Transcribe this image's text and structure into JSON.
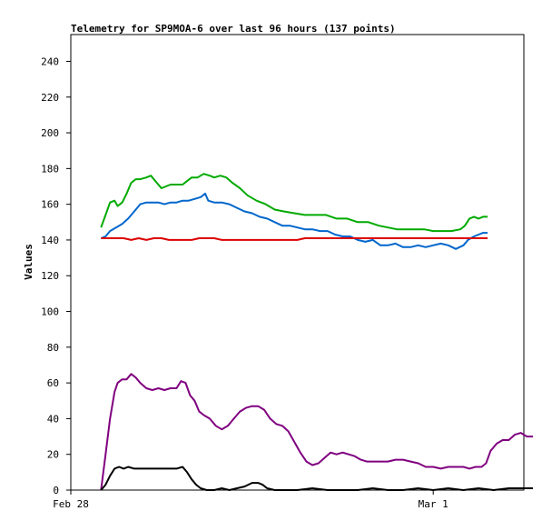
{
  "chart_data": {
    "type": "line",
    "title": "Telemetry for SP9MOA-6 over last 96 hours (137 points)",
    "ylabel": "Values",
    "xlabel": "",
    "ylim": [
      0,
      255
    ],
    "yticks": [
      0,
      20,
      40,
      60,
      80,
      100,
      120,
      140,
      160,
      180,
      200,
      220,
      240
    ],
    "x_ticks": [
      {
        "label": "Feb 28",
        "x": 0
      },
      {
        "label": "Mar 1",
        "x": 24
      }
    ],
    "xlim": [
      0,
      30
    ],
    "grid": false,
    "legend": "none",
    "series": [
      {
        "color": "#00aa00",
        "points": [
          [
            2.0,
            147
          ],
          [
            2.3,
            154
          ],
          [
            2.6,
            161
          ],
          [
            2.9,
            162
          ],
          [
            3.1,
            159
          ],
          [
            3.4,
            161
          ],
          [
            3.7,
            166
          ],
          [
            4.0,
            172
          ],
          [
            4.3,
            174
          ],
          [
            4.6,
            174
          ],
          [
            5.0,
            175
          ],
          [
            5.3,
            176
          ],
          [
            5.6,
            173
          ],
          [
            6.0,
            169
          ],
          [
            6.3,
            170
          ],
          [
            6.6,
            171
          ],
          [
            7.0,
            171
          ],
          [
            7.4,
            171
          ],
          [
            7.7,
            173
          ],
          [
            8.0,
            175
          ],
          [
            8.4,
            175
          ],
          [
            8.8,
            177
          ],
          [
            9.2,
            176
          ],
          [
            9.5,
            175
          ],
          [
            9.9,
            176
          ],
          [
            10.3,
            175
          ],
          [
            10.7,
            172
          ],
          [
            11.2,
            169
          ],
          [
            11.7,
            165
          ],
          [
            12.3,
            162
          ],
          [
            12.9,
            160
          ],
          [
            13.5,
            157
          ],
          [
            14.1,
            156
          ],
          [
            14.8,
            155
          ],
          [
            15.5,
            154
          ],
          [
            16.2,
            154
          ],
          [
            16.9,
            154
          ],
          [
            17.6,
            152
          ],
          [
            18.3,
            152
          ],
          [
            19.0,
            150
          ],
          [
            19.7,
            150
          ],
          [
            20.4,
            148
          ],
          [
            21.0,
            147
          ],
          [
            21.6,
            146
          ],
          [
            22.2,
            146
          ],
          [
            22.8,
            146
          ],
          [
            23.4,
            146
          ],
          [
            24.0,
            145
          ],
          [
            24.6,
            145
          ],
          [
            25.2,
            145
          ],
          [
            25.8,
            146
          ],
          [
            26.1,
            148
          ],
          [
            26.4,
            152
          ],
          [
            26.7,
            153
          ],
          [
            27.0,
            152
          ],
          [
            27.3,
            153
          ],
          [
            27.6,
            153
          ]
        ]
      },
      {
        "color": "#0066cc",
        "points": [
          [
            2.0,
            141
          ],
          [
            2.3,
            142
          ],
          [
            2.6,
            145
          ],
          [
            3.0,
            147
          ],
          [
            3.4,
            149
          ],
          [
            3.8,
            152
          ],
          [
            4.2,
            156
          ],
          [
            4.6,
            160
          ],
          [
            5.0,
            161
          ],
          [
            5.4,
            161
          ],
          [
            5.8,
            161
          ],
          [
            6.2,
            160
          ],
          [
            6.6,
            161
          ],
          [
            7.0,
            161
          ],
          [
            7.4,
            162
          ],
          [
            7.8,
            162
          ],
          [
            8.2,
            163
          ],
          [
            8.6,
            164
          ],
          [
            8.9,
            166
          ],
          [
            9.1,
            162
          ],
          [
            9.5,
            161
          ],
          [
            10.0,
            161
          ],
          [
            10.5,
            160
          ],
          [
            11.0,
            158
          ],
          [
            11.5,
            156
          ],
          [
            12.0,
            155
          ],
          [
            12.5,
            153
          ],
          [
            13.0,
            152
          ],
          [
            13.5,
            150
          ],
          [
            14.0,
            148
          ],
          [
            14.5,
            148
          ],
          [
            15.0,
            147
          ],
          [
            15.5,
            146
          ],
          [
            16.0,
            146
          ],
          [
            16.5,
            145
          ],
          [
            17.0,
            145
          ],
          [
            17.5,
            143
          ],
          [
            18.0,
            142
          ],
          [
            18.5,
            142
          ],
          [
            19.0,
            140
          ],
          [
            19.5,
            139
          ],
          [
            20.0,
            140
          ],
          [
            20.5,
            137
          ],
          [
            21.0,
            137
          ],
          [
            21.5,
            138
          ],
          [
            22.0,
            136
          ],
          [
            22.5,
            136
          ],
          [
            23.0,
            137
          ],
          [
            23.5,
            136
          ],
          [
            24.0,
            137
          ],
          [
            24.5,
            138
          ],
          [
            25.0,
            137
          ],
          [
            25.5,
            135
          ],
          [
            26.0,
            137
          ],
          [
            26.3,
            140
          ],
          [
            26.7,
            142
          ],
          [
            27.0,
            143
          ],
          [
            27.3,
            144
          ],
          [
            27.6,
            144
          ]
        ]
      },
      {
        "color": "#dd0000",
        "points": [
          [
            2.0,
            141
          ],
          [
            3.0,
            141
          ],
          [
            3.5,
            141
          ],
          [
            4.0,
            140
          ],
          [
            4.5,
            141
          ],
          [
            5.0,
            140
          ],
          [
            5.5,
            141
          ],
          [
            6.0,
            141
          ],
          [
            6.5,
            140
          ],
          [
            8.0,
            140
          ],
          [
            8.5,
            141
          ],
          [
            9.5,
            141
          ],
          [
            10.0,
            140
          ],
          [
            15.0,
            140
          ],
          [
            15.5,
            141
          ],
          [
            20.0,
            141
          ],
          [
            27.6,
            141
          ]
        ]
      },
      {
        "color": "#800080",
        "points": [
          [
            2.0,
            0
          ],
          [
            2.3,
            20
          ],
          [
            2.6,
            40
          ],
          [
            2.9,
            55
          ],
          [
            3.1,
            60
          ],
          [
            3.4,
            62
          ],
          [
            3.7,
            62
          ],
          [
            4.0,
            65
          ],
          [
            4.3,
            63
          ],
          [
            4.6,
            60
          ],
          [
            5.0,
            57
          ],
          [
            5.4,
            56
          ],
          [
            5.8,
            57
          ],
          [
            6.2,
            56
          ],
          [
            6.6,
            57
          ],
          [
            7.0,
            57
          ],
          [
            7.3,
            61
          ],
          [
            7.6,
            60
          ],
          [
            7.9,
            53
          ],
          [
            8.2,
            50
          ],
          [
            8.5,
            44
          ],
          [
            8.8,
            42
          ],
          [
            9.2,
            40
          ],
          [
            9.6,
            36
          ],
          [
            10.0,
            34
          ],
          [
            10.4,
            36
          ],
          [
            10.8,
            40
          ],
          [
            11.2,
            44
          ],
          [
            11.6,
            46
          ],
          [
            12.0,
            47
          ],
          [
            12.4,
            47
          ],
          [
            12.8,
            45
          ],
          [
            13.2,
            40
          ],
          [
            13.6,
            37
          ],
          [
            14.0,
            36
          ],
          [
            14.4,
            33
          ],
          [
            14.8,
            27
          ],
          [
            15.2,
            21
          ],
          [
            15.6,
            16
          ],
          [
            16.0,
            14
          ],
          [
            16.4,
            15
          ],
          [
            16.8,
            18
          ],
          [
            17.2,
            21
          ],
          [
            17.6,
            20
          ],
          [
            18.0,
            21
          ],
          [
            18.4,
            20
          ],
          [
            18.8,
            19
          ],
          [
            19.2,
            17
          ],
          [
            19.6,
            16
          ],
          [
            20.0,
            16
          ],
          [
            20.5,
            16
          ],
          [
            21.0,
            16
          ],
          [
            21.5,
            17
          ],
          [
            22.0,
            17
          ],
          [
            22.5,
            16
          ],
          [
            23.0,
            15
          ],
          [
            23.5,
            13
          ],
          [
            24.0,
            13
          ],
          [
            24.5,
            12
          ],
          [
            25.0,
            13
          ],
          [
            25.5,
            13
          ],
          [
            26.0,
            13
          ],
          [
            26.4,
            12
          ],
          [
            26.8,
            13
          ],
          [
            27.2,
            13
          ],
          [
            27.5,
            15
          ],
          [
            27.8,
            22
          ],
          [
            28.2,
            26
          ],
          [
            28.6,
            28
          ],
          [
            29.0,
            28
          ],
          [
            29.4,
            31
          ],
          [
            29.8,
            32
          ],
          [
            30.2,
            30
          ],
          [
            30.6,
            30
          ]
        ]
      },
      {
        "color": "#000000",
        "points": [
          [
            2.0,
            0
          ],
          [
            2.3,
            3
          ],
          [
            2.6,
            8
          ],
          [
            2.9,
            12
          ],
          [
            3.2,
            13
          ],
          [
            3.5,
            12
          ],
          [
            3.8,
            13
          ],
          [
            4.2,
            12
          ],
          [
            5.0,
            12
          ],
          [
            6.0,
            12
          ],
          [
            7.0,
            12
          ],
          [
            7.4,
            13
          ],
          [
            7.7,
            10
          ],
          [
            8.0,
            6
          ],
          [
            8.3,
            3
          ],
          [
            8.6,
            1
          ],
          [
            9.0,
            0
          ],
          [
            9.5,
            0
          ],
          [
            10.0,
            1
          ],
          [
            10.5,
            0
          ],
          [
            11.0,
            1
          ],
          [
            11.5,
            2
          ],
          [
            12.0,
            4
          ],
          [
            12.4,
            4
          ],
          [
            12.7,
            3
          ],
          [
            13.0,
            1
          ],
          [
            13.5,
            0
          ],
          [
            14.0,
            0
          ],
          [
            15.0,
            0
          ],
          [
            16.0,
            1
          ],
          [
            17.0,
            0
          ],
          [
            18.0,
            0
          ],
          [
            19.0,
            0
          ],
          [
            20.0,
            1
          ],
          [
            21.0,
            0
          ],
          [
            22.0,
            0
          ],
          [
            23.0,
            1
          ],
          [
            24.0,
            0
          ],
          [
            25.0,
            1
          ],
          [
            26.0,
            0
          ],
          [
            27.0,
            1
          ],
          [
            28.0,
            0
          ],
          [
            29.0,
            1
          ],
          [
            30.0,
            1
          ],
          [
            30.6,
            1
          ]
        ]
      }
    ]
  }
}
